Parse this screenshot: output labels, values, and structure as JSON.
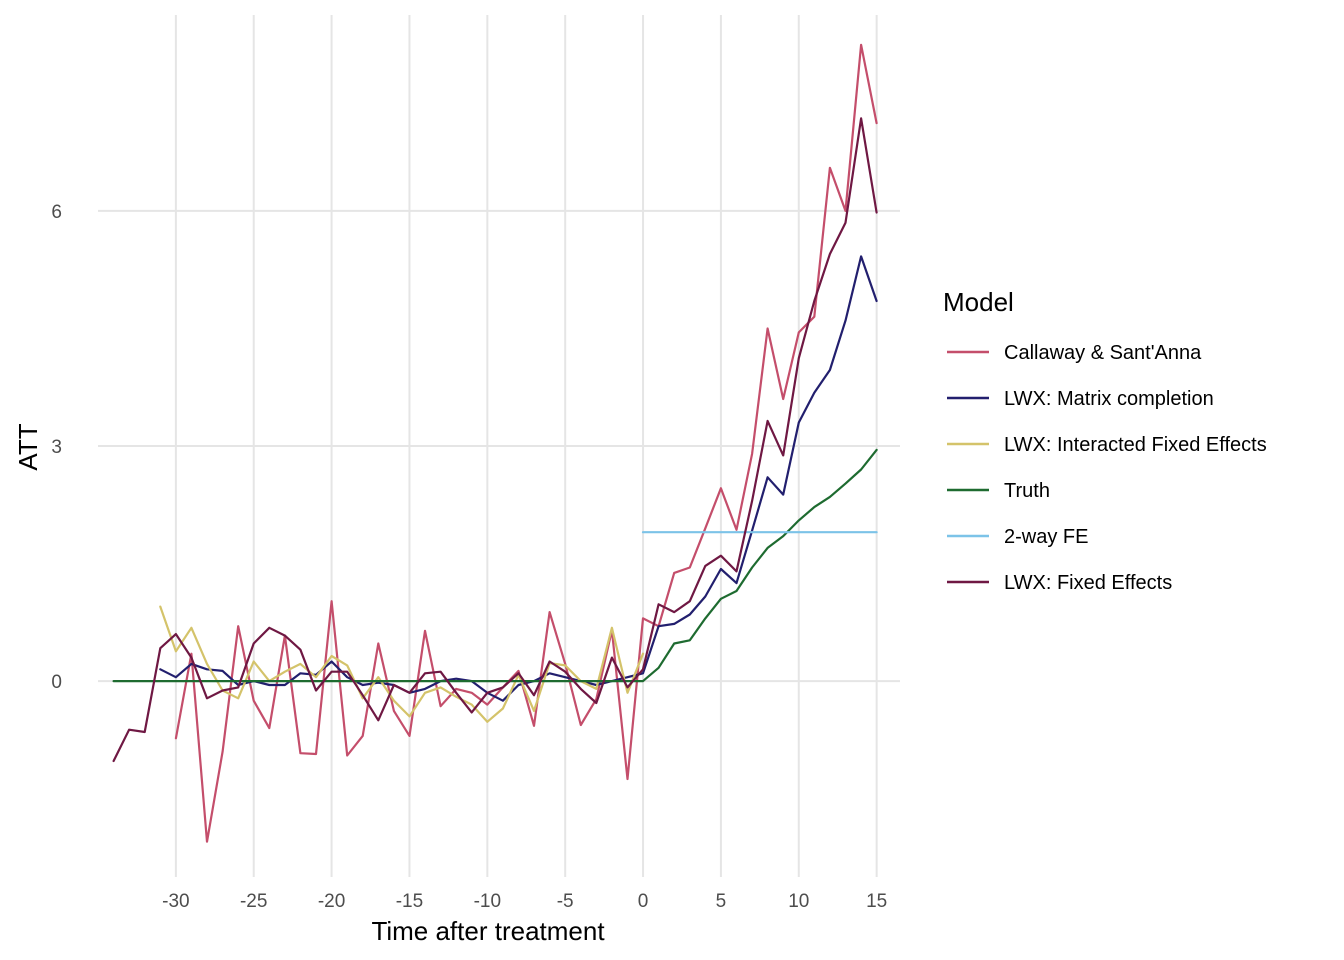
{
  "chart_data": {
    "type": "line",
    "title": "",
    "xlabel": "Time after treatment",
    "ylabel": "ATT",
    "xlim": [
      -35,
      16.5
    ],
    "ylim": [
      -2.5,
      8.5
    ],
    "x_ticks": [
      -30,
      -25,
      -20,
      -15,
      -10,
      -5,
      0,
      5,
      10,
      15
    ],
    "x_tick_labels": [
      "-30",
      "-25",
      "-20",
      "-15",
      "-10",
      "-5",
      "0",
      "5",
      "10",
      "15"
    ],
    "y_ticks": [
      0,
      3,
      6
    ],
    "y_tick_labels": [
      "0",
      "3",
      "6"
    ],
    "grid": true,
    "legend_title": "Model",
    "legend_position": "right",
    "series": [
      {
        "name": "Callaway & Sant'Anna",
        "color": "#c44e6b",
        "x": [
          -31,
          -30,
          -29,
          -28,
          -27,
          -26,
          -25,
          -24,
          -23,
          -22,
          -21,
          -20,
          -19,
          -18,
          -17,
          -16,
          -15,
          -14,
          -13,
          -12,
          -11,
          -10,
          -9,
          -8,
          -7,
          -6,
          -5,
          -4,
          -3,
          -2,
          -1,
          0,
          1,
          2,
          3,
          4,
          5,
          6,
          7,
          8,
          9,
          10,
          11,
          12,
          13,
          14,
          15
        ],
        "y": [
          null,
          -0.73,
          0.35,
          -2.05,
          -0.9,
          0.7,
          -0.25,
          -0.6,
          0.58,
          -0.92,
          -0.93,
          1.02,
          -0.95,
          -0.7,
          0.48,
          -0.38,
          -0.7,
          0.64,
          -0.32,
          -0.1,
          -0.15,
          -0.3,
          -0.08,
          0.13,
          -0.57,
          0.88,
          0.22,
          -0.56,
          -0.23,
          0.65,
          -1.25,
          0.8,
          0.7,
          1.38,
          1.45,
          1.95,
          2.46,
          1.93,
          2.9,
          4.5,
          3.6,
          4.45,
          4.65,
          6.55,
          6.0,
          8.12,
          7.12
        ]
      },
      {
        "name": "LWX: Matrix completion",
        "color": "#221f6e",
        "x": [
          -31,
          -30,
          -29,
          -28,
          -27,
          -26,
          -25,
          -24,
          -23,
          -22,
          -21,
          -20,
          -19,
          -18,
          -17,
          -16,
          -15,
          -14,
          -13,
          -12,
          -11,
          -10,
          -9,
          -8,
          -7,
          -6,
          -5,
          -4,
          -3,
          -2,
          -1,
          0,
          1,
          2,
          3,
          4,
          5,
          6,
          7,
          8,
          9,
          10,
          11,
          12,
          13,
          14,
          15
        ],
        "y": [
          0.15,
          0.05,
          0.22,
          0.15,
          0.13,
          -0.05,
          0.0,
          -0.05,
          -0.05,
          0.1,
          0.08,
          0.25,
          0.05,
          -0.05,
          -0.02,
          -0.05,
          -0.15,
          -0.1,
          0.0,
          0.03,
          0.0,
          -0.15,
          -0.25,
          -0.05,
          0.0,
          0.1,
          0.05,
          0.0,
          -0.05,
          0.0,
          0.05,
          0.1,
          0.7,
          0.73,
          0.85,
          1.08,
          1.43,
          1.25,
          1.92,
          2.6,
          2.38,
          3.3,
          3.68,
          3.97,
          4.6,
          5.42,
          4.85
        ]
      },
      {
        "name": "LWX: Interacted Fixed Effects",
        "color": "#d4c36a",
        "x": [
          -31,
          -30,
          -29,
          -28,
          -27,
          -26,
          -25,
          -24,
          -23,
          -22,
          -21,
          -20,
          -19,
          -18,
          -17,
          -16,
          -15,
          -14,
          -13,
          -12,
          -11,
          -10,
          -9,
          -8,
          -7,
          -6,
          -5,
          -4,
          -3,
          -2,
          -1,
          0,
          1,
          2,
          3,
          4,
          5,
          6,
          7,
          8,
          9,
          10,
          11,
          12,
          13,
          14,
          15
        ],
        "y": [
          0.95,
          0.38,
          0.68,
          0.22,
          -0.12,
          -0.22,
          0.25,
          0.0,
          0.12,
          0.22,
          0.05,
          0.32,
          0.2,
          -0.22,
          0.05,
          -0.25,
          -0.45,
          -0.15,
          -0.08,
          -0.2,
          -0.3,
          -0.52,
          -0.35,
          0.08,
          -0.38,
          0.23,
          0.2,
          0.0,
          -0.1,
          0.68,
          -0.15,
          0.35,
          null,
          null,
          null,
          null,
          null,
          null,
          null,
          null,
          null,
          null,
          null,
          null,
          null,
          null,
          null
        ]
      },
      {
        "name": "Truth",
        "color": "#1e6b30",
        "x": [
          -34,
          -33,
          -32,
          -31,
          -30,
          -29,
          -28,
          -27,
          -26,
          -25,
          -24,
          -23,
          -22,
          -21,
          -20,
          -19,
          -18,
          -17,
          -16,
          -15,
          -14,
          -13,
          -12,
          -11,
          -10,
          -9,
          -8,
          -7,
          -6,
          -5,
          -4,
          -3,
          -2,
          -1,
          0,
          1,
          2,
          3,
          4,
          5,
          6,
          7,
          8,
          9,
          10,
          11,
          12,
          13,
          14,
          15
        ],
        "y": [
          0,
          0,
          0,
          0,
          0,
          0,
          0,
          0,
          0,
          0,
          0,
          0,
          0,
          0,
          0,
          0,
          0,
          0,
          0,
          0,
          0,
          0,
          0,
          0,
          0,
          0,
          0,
          0,
          0,
          0,
          0,
          0,
          0,
          0,
          0,
          0.17,
          0.48,
          0.52,
          0.8,
          1.05,
          1.15,
          1.45,
          1.7,
          1.85,
          2.05,
          2.22,
          2.35,
          2.52,
          2.7,
          2.95
        ]
      },
      {
        "name": "2-way FE",
        "color": "#7cc3e8",
        "x": [
          0,
          15
        ],
        "y": [
          1.9,
          1.9
        ]
      },
      {
        "name": "LWX: Fixed Effects",
        "color": "#6f1843",
        "x": [
          -34,
          -33,
          -32,
          -31,
          -30,
          -29,
          -28,
          -27,
          -26,
          -25,
          -24,
          -23,
          -22,
          -21,
          -20,
          -19,
          -18,
          -17,
          -16,
          -15,
          -14,
          -13,
          -12,
          -11,
          -10,
          -9,
          -8,
          -7,
          -6,
          -5,
          -4,
          -3,
          -2,
          -1,
          0,
          1,
          2,
          3,
          4,
          5,
          6,
          7,
          8,
          9,
          10,
          11,
          12,
          13,
          14,
          15
        ],
        "y": [
          -1.02,
          -0.62,
          -0.65,
          0.42,
          0.6,
          0.3,
          -0.22,
          -0.12,
          -0.08,
          0.48,
          0.68,
          0.58,
          0.4,
          -0.12,
          0.12,
          0.12,
          -0.18,
          -0.5,
          -0.05,
          -0.15,
          0.1,
          0.12,
          -0.15,
          -0.4,
          -0.15,
          -0.08,
          0.1,
          -0.18,
          0.25,
          0.12,
          -0.1,
          -0.28,
          0.3,
          -0.08,
          0.15,
          0.98,
          0.88,
          1.02,
          1.47,
          1.6,
          1.4,
          2.3,
          3.32,
          2.88,
          4.12,
          4.85,
          5.45,
          5.85,
          7.18,
          5.98
        ]
      }
    ]
  }
}
